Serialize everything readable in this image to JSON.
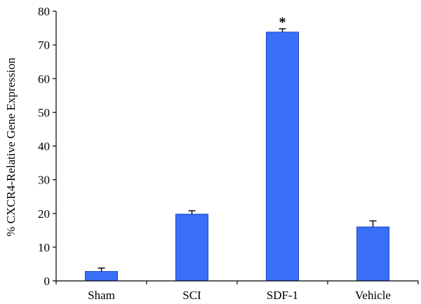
{
  "chart_data": {
    "type": "bar",
    "categories": [
      "Sham",
      "SCI",
      "SDF-1",
      "Vehicle"
    ],
    "values": [
      2.8,
      19.8,
      73.8,
      16.0
    ],
    "errors": [
      1.0,
      1.0,
      1.0,
      1.8
    ],
    "ylabel": "% CXCR4-Relative Gene Expression",
    "xlabel": "",
    "ylim": [
      0,
      80
    ],
    "yticks": [
      0,
      10,
      20,
      30,
      40,
      50,
      60,
      70,
      80
    ],
    "grid": false,
    "legend": "none",
    "bar_color": "#3a6ff7",
    "bar_edge_color": "#1c46c8",
    "annotations": [
      {
        "category": "SDF-1",
        "text": "*"
      }
    ]
  }
}
